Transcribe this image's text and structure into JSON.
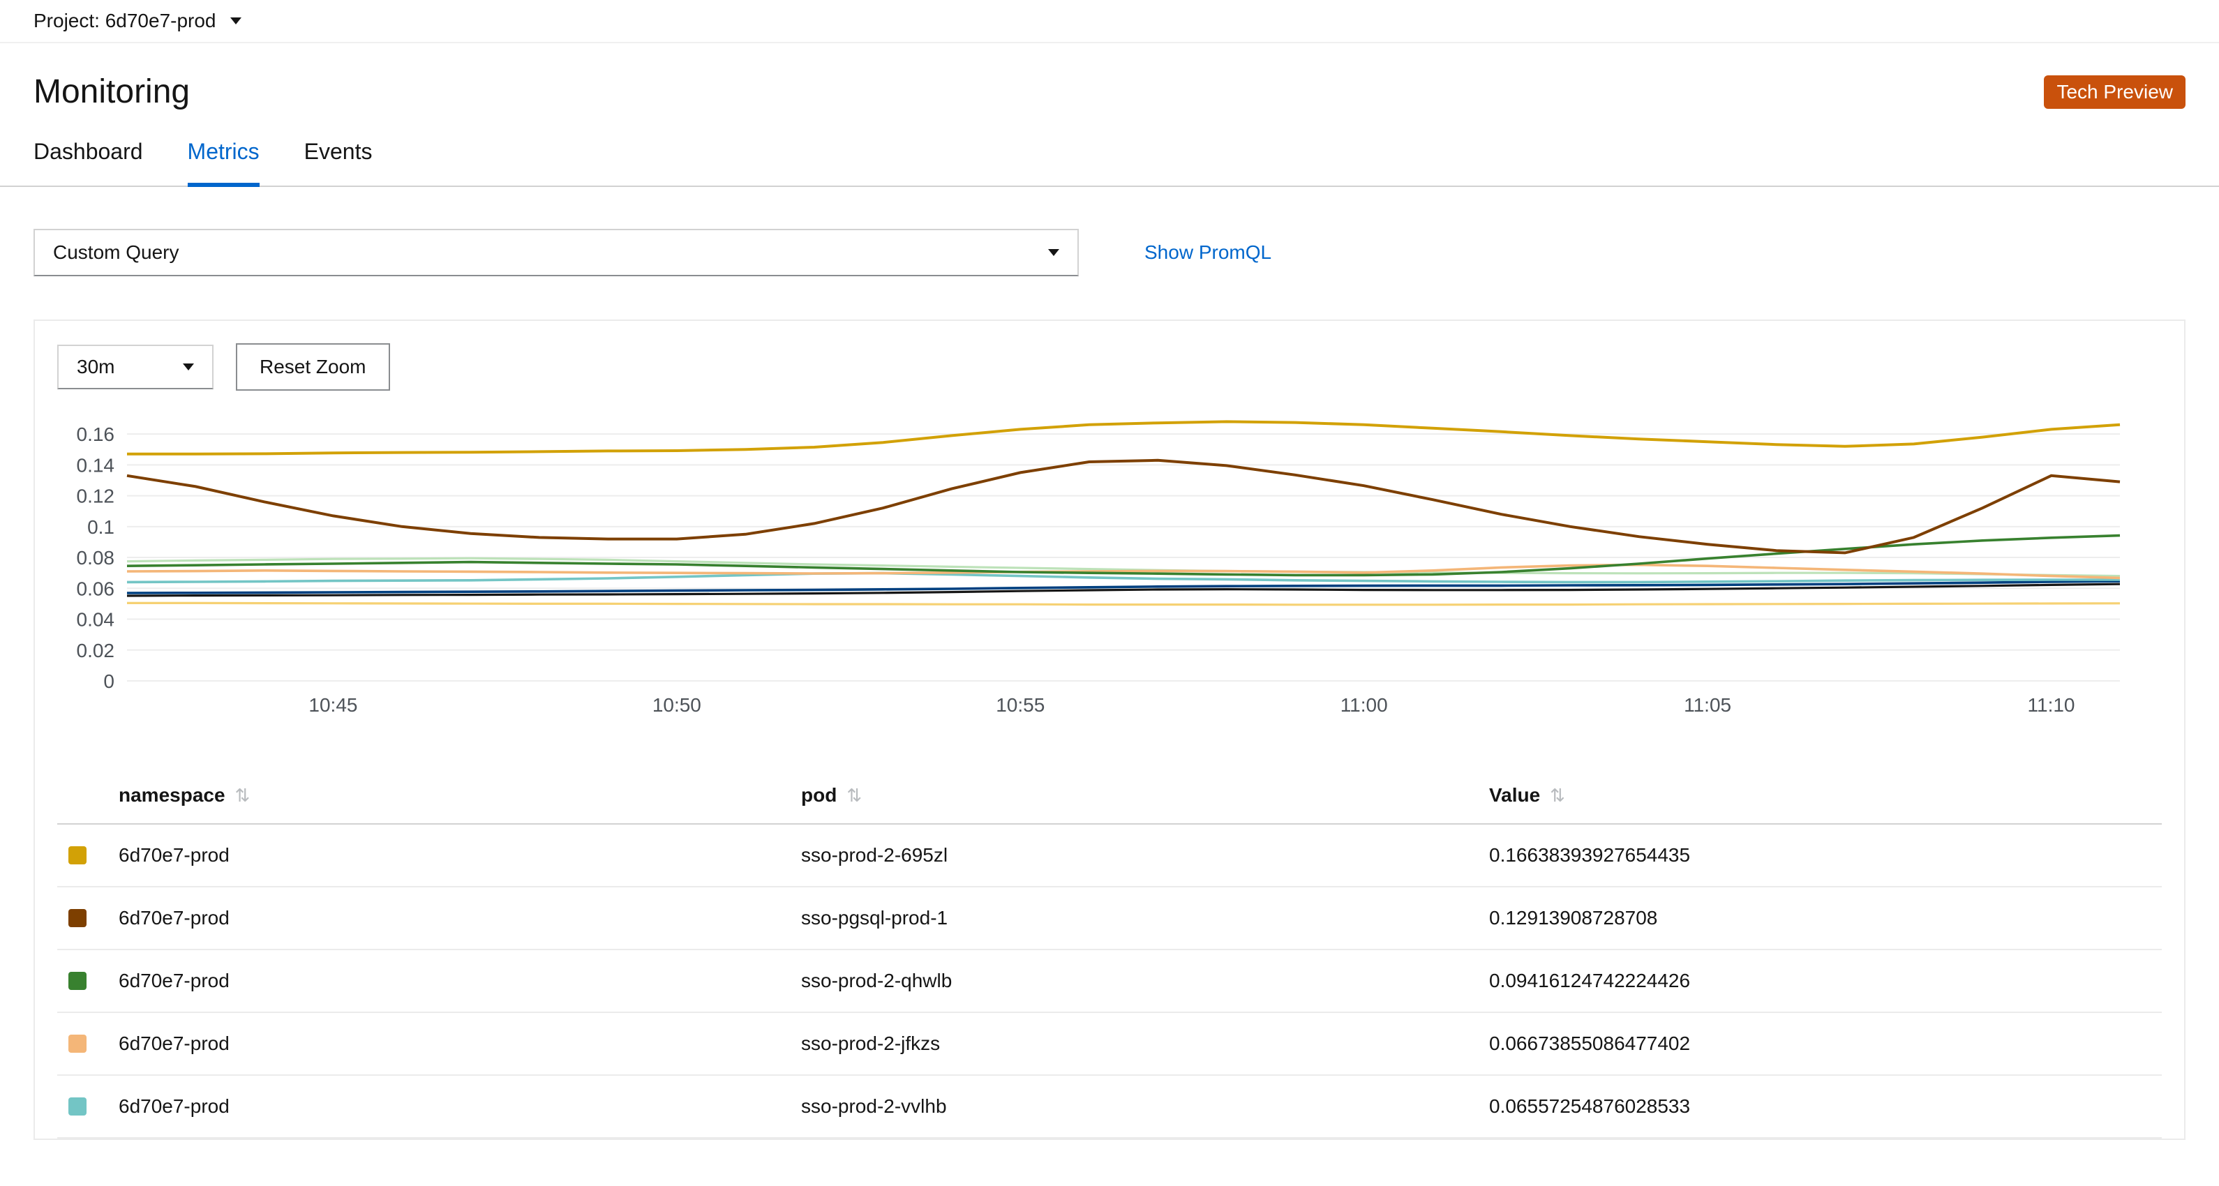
{
  "topbar": {
    "project_label": "Project: 6d70e7-prod"
  },
  "header": {
    "title": "Monitoring",
    "badge": "Tech Preview"
  },
  "tabs": [
    {
      "label": "Dashboard"
    },
    {
      "label": "Metrics"
    },
    {
      "label": "Events"
    }
  ],
  "active_tab": "Metrics",
  "query": {
    "selected": "Custom Query",
    "promql_link": "Show PromQL"
  },
  "controls": {
    "range": "30m",
    "reset_zoom_label": "Reset Zoom"
  },
  "colors": {
    "accent": "#0066cc",
    "badge_bg": "#c9510c"
  },
  "chart_data": {
    "type": "line",
    "title": "",
    "x_start_label": "10:42",
    "n_points": 30,
    "x_ticks": [
      {
        "i": 3,
        "label": "10:45"
      },
      {
        "i": 8,
        "label": "10:50"
      },
      {
        "i": 13,
        "label": "10:55"
      },
      {
        "i": 18,
        "label": "11:00"
      },
      {
        "i": 23,
        "label": "11:05"
      },
      {
        "i": 28,
        "label": "11:10"
      }
    ],
    "ylim": [
      0,
      0.17
    ],
    "y_ticks": [
      "0",
      "0.02",
      "0.04",
      "0.06",
      "0.08",
      "0.1",
      "0.12",
      "0.14",
      "0.16"
    ],
    "grid": "horizontal",
    "legend": "table-below",
    "series": [
      {
        "name": "sso-prod-2-695zl",
        "color": "#d2a106",
        "stroke_width": 2,
        "values": [
          0.147,
          0.147,
          0.1472,
          0.1478,
          0.148,
          0.1482,
          0.1486,
          0.149,
          0.1492,
          0.15,
          0.1515,
          0.1545,
          0.159,
          0.163,
          0.166,
          0.1672,
          0.168,
          0.1675,
          0.166,
          0.1638,
          0.1615,
          0.159,
          0.1568,
          0.155,
          0.1532,
          0.152,
          0.1535,
          0.158,
          0.163,
          0.166
        ]
      },
      {
        "name": "sso-pgsql-prod-1",
        "color": "#7d3f00",
        "stroke_width": 2,
        "values": [
          0.133,
          0.126,
          0.116,
          0.107,
          0.1,
          0.0955,
          0.093,
          0.092,
          0.092,
          0.095,
          0.102,
          0.112,
          0.1245,
          0.135,
          0.142,
          0.143,
          0.1395,
          0.1335,
          0.1265,
          0.1175,
          0.108,
          0.1,
          0.0935,
          0.0885,
          0.0845,
          0.083,
          0.093,
          0.112,
          0.133,
          0.129
        ]
      },
      {
        "name": "sso-prod-2-qhwlb",
        "color": "#38812f",
        "stroke_width": 1.8,
        "values": [
          0.0745,
          0.075,
          0.0755,
          0.076,
          0.0765,
          0.077,
          0.0765,
          0.076,
          0.0755,
          0.0745,
          0.0735,
          0.0725,
          0.0715,
          0.0705,
          0.07,
          0.0695,
          0.069,
          0.0685,
          0.0685,
          0.069,
          0.0705,
          0.073,
          0.076,
          0.0793,
          0.0825,
          0.0855,
          0.0885,
          0.091,
          0.0928,
          0.0942
        ]
      },
      {
        "name": "sso-prod-2-jfkzs",
        "color": "#f4b678",
        "stroke_width": 1.8,
        "values": [
          0.071,
          0.0712,
          0.0715,
          0.0713,
          0.071,
          0.0708,
          0.0705,
          0.0702,
          0.07,
          0.0698,
          0.0696,
          0.0698,
          0.0702,
          0.0706,
          0.071,
          0.0713,
          0.0712,
          0.0708,
          0.0702,
          0.0715,
          0.0735,
          0.0748,
          0.0752,
          0.0745,
          0.0732,
          0.072,
          0.0708,
          0.0695,
          0.068,
          0.0667
        ]
      },
      {
        "name": "sso-prod-2-vvlhb",
        "color": "#73c5c5",
        "stroke_width": 1.8,
        "values": [
          0.064,
          0.0642,
          0.0645,
          0.0648,
          0.065,
          0.0652,
          0.0658,
          0.0665,
          0.0675,
          0.0685,
          0.0695,
          0.0698,
          0.069,
          0.068,
          0.067,
          0.0662,
          0.0658,
          0.0652,
          0.0648,
          0.0645,
          0.0642,
          0.064,
          0.064,
          0.0643,
          0.0646,
          0.065,
          0.0653,
          0.0655,
          0.0656,
          0.0656
        ]
      },
      {
        "name": "unlabeled-series-1",
        "color": "#bde2b9",
        "stroke_width": 1.6,
        "values": [
          0.0775,
          0.078,
          0.0785,
          0.079,
          0.0792,
          0.0795,
          0.079,
          0.0785,
          0.0775,
          0.0765,
          0.0755,
          0.0748,
          0.074,
          0.0732,
          0.0725,
          0.0718,
          0.0712,
          0.0708,
          0.0705,
          0.0702,
          0.07,
          0.0698,
          0.0697,
          0.0698,
          0.07,
          0.07,
          0.0698,
          0.0692,
          0.0685,
          0.068
        ]
      },
      {
        "name": "unlabeled-series-2",
        "color": "#004080",
        "stroke_width": 1.8,
        "values": [
          0.057,
          0.0571,
          0.0572,
          0.0574,
          0.0576,
          0.0578,
          0.058,
          0.0582,
          0.0585,
          0.0588,
          0.059,
          0.0593,
          0.0597,
          0.0602,
          0.0607,
          0.0611,
          0.0614,
          0.0616,
          0.0617,
          0.0618,
          0.0618,
          0.0619,
          0.062,
          0.0622,
          0.0625,
          0.0628,
          0.0632,
          0.0637,
          0.0642,
          0.0646
        ]
      },
      {
        "name": "unlabeled-series-3",
        "color": "#151515",
        "stroke_width": 1.6,
        "values": [
          0.0552,
          0.0553,
          0.0554,
          0.0555,
          0.0557,
          0.0558,
          0.056,
          0.0561,
          0.0562,
          0.0564,
          0.0567,
          0.0571,
          0.0576,
          0.0582,
          0.0588,
          0.0592,
          0.0594,
          0.0592,
          0.059,
          0.0589,
          0.0589,
          0.059,
          0.0592,
          0.0596,
          0.06,
          0.0605,
          0.061,
          0.0616,
          0.0622,
          0.0628
        ]
      },
      {
        "name": "unlabeled-series-4",
        "color": "#f6d173",
        "stroke_width": 1.6,
        "values": [
          0.0505,
          0.0505,
          0.0504,
          0.0503,
          0.0502,
          0.0501,
          0.05,
          0.05,
          0.0499,
          0.0498,
          0.0497,
          0.0497,
          0.0496,
          0.0496,
          0.0495,
          0.0495,
          0.0495,
          0.0494,
          0.0494,
          0.0494,
          0.0495,
          0.0495,
          0.0496,
          0.0497,
          0.0498,
          0.0499,
          0.05,
          0.0501,
          0.0502,
          0.0503
        ]
      }
    ]
  },
  "table": {
    "headers": [
      "namespace",
      "pod",
      "Value"
    ],
    "rows": [
      {
        "color": "#d2a106",
        "namespace": "6d70e7-prod",
        "pod": "sso-prod-2-695zl",
        "value": "0.16638393927654435"
      },
      {
        "color": "#7d3f00",
        "namespace": "6d70e7-prod",
        "pod": "sso-pgsql-prod-1",
        "value": "0.12913908728708"
      },
      {
        "color": "#38812f",
        "namespace": "6d70e7-prod",
        "pod": "sso-prod-2-qhwlb",
        "value": "0.09416124742224426"
      },
      {
        "color": "#f4b678",
        "namespace": "6d70e7-prod",
        "pod": "sso-prod-2-jfkzs",
        "value": "0.06673855086477402"
      },
      {
        "color": "#73c5c5",
        "namespace": "6d70e7-prod",
        "pod": "sso-prod-2-vvlhb",
        "value": "0.06557254876028533"
      }
    ]
  }
}
